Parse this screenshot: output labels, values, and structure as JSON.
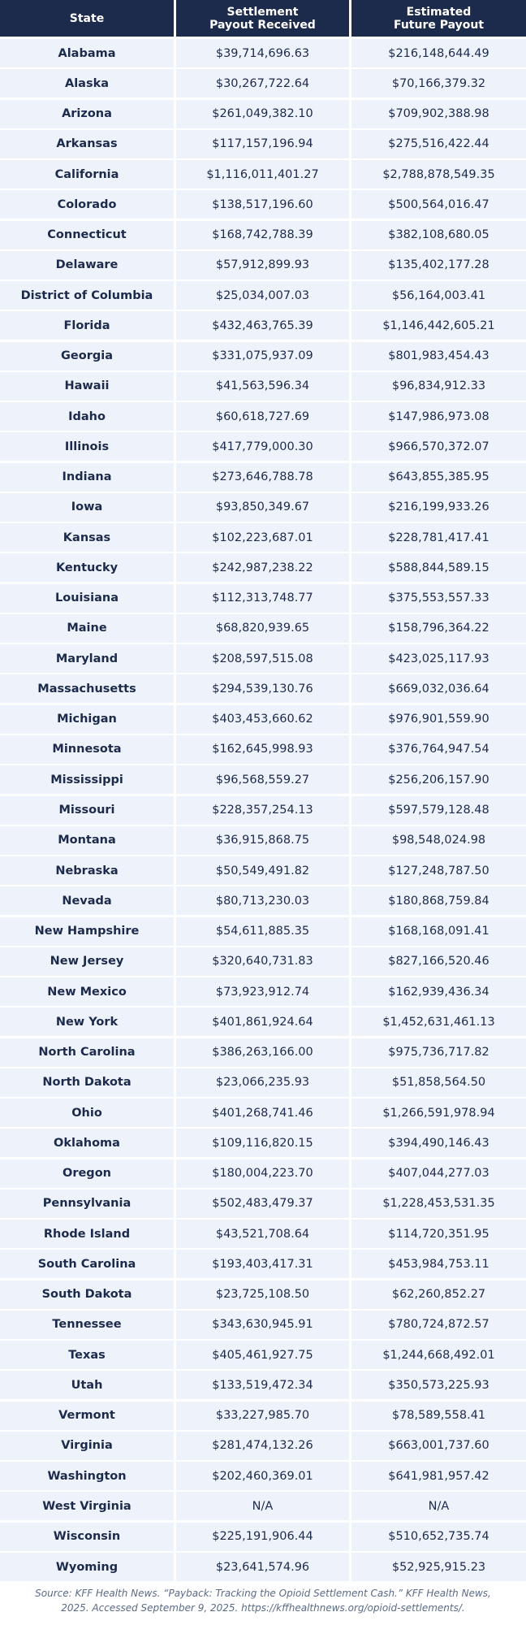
{
  "table": {
    "header": [
      "State",
      "Settlement Payout Received",
      "Estimated Future Payout"
    ],
    "rows": [
      [
        "Alabama",
        "$39,714,696.63",
        "$216,148,644.49"
      ],
      [
        "Alaska",
        "$30,267,722.64",
        "$70,166,379.32"
      ],
      [
        "Arizona",
        "$261,049,382.10",
        "$709,902,388.98"
      ],
      [
        "Arkansas",
        "$117,157,196.94",
        "$275,516,422.44"
      ],
      [
        "California",
        "$1,116,011,401.27",
        "$2,788,878,549.35"
      ],
      [
        "Colorado",
        "$138,517,196.60",
        "$500,564,016.47"
      ],
      [
        "Connecticut",
        "$168,742,788.39",
        "$382,108,680.05"
      ],
      [
        "Delaware",
        "$57,912,899.93",
        "$135,402,177.28"
      ],
      [
        "District of Columbia",
        "$25,034,007.03",
        "$56,164,003.41"
      ],
      [
        "Florida",
        "$432,463,765.39",
        "$1,146,442,605.21"
      ],
      [
        "Georgia",
        "$331,075,937.09",
        "$801,983,454.43"
      ],
      [
        "Hawaii",
        "$41,563,596.34",
        "$96,834,912.33"
      ],
      [
        "Idaho",
        "$60,618,727.69",
        "$147,986,973.08"
      ],
      [
        "Illinois",
        "$417,779,000.30",
        "$966,570,372.07"
      ],
      [
        "Indiana",
        "$273,646,788.78",
        "$643,855,385.95"
      ],
      [
        "Iowa",
        "$93,850,349.67",
        "$216,199,933.26"
      ],
      [
        "Kansas",
        "$102,223,687.01",
        "$228,781,417.41"
      ],
      [
        "Kentucky",
        "$242,987,238.22",
        "$588,844,589.15"
      ],
      [
        "Louisiana",
        "$112,313,748.77",
        "$375,553,557.33"
      ],
      [
        "Maine",
        "$68,820,939.65",
        "$158,796,364.22"
      ],
      [
        "Maryland",
        "$208,597,515.08",
        "$423,025,117.93"
      ],
      [
        "Massachusetts",
        "$294,539,130.76",
        "$669,032,036.64"
      ],
      [
        "Michigan",
        "$403,453,660.62",
        "$976,901,559.90"
      ],
      [
        "Minnesota",
        "$162,645,998.93",
        "$376,764,947.54"
      ],
      [
        "Mississippi",
        "$96,568,559.27",
        "$256,206,157.90"
      ],
      [
        "Missouri",
        "$228,357,254.13",
        "$597,579,128.48"
      ],
      [
        "Montana",
        "$36,915,868.75",
        "$98,548,024.98"
      ],
      [
        "Nebraska",
        "$50,549,491.82",
        "$127,248,787.50"
      ],
      [
        "Nevada",
        "$80,713,230.03",
        "$180,868,759.84"
      ],
      [
        "New Hampshire",
        "$54,611,885.35",
        "$168,168,091.41"
      ],
      [
        "New Jersey",
        "$320,640,731.83",
        "$827,166,520.46"
      ],
      [
        "New Mexico",
        "$73,923,912.74",
        "$162,939,436.34"
      ],
      [
        "New York",
        "$401,861,924.64",
        "$1,452,631,461.13"
      ],
      [
        "North Carolina",
        "$386,263,166.00",
        "$975,736,717.82"
      ],
      [
        "North Dakota",
        "$23,066,235.93",
        "$51,858,564.50"
      ],
      [
        "Ohio",
        "$401,268,741.46",
        "$1,266,591,978.94"
      ],
      [
        "Oklahoma",
        "$109,116,820.15",
        "$394,490,146.43"
      ],
      [
        "Oregon",
        "$180,004,223.70",
        "$407,044,277.03"
      ],
      [
        "Pennsylvania",
        "$502,483,479.37",
        "$1,228,453,531.35"
      ],
      [
        "Rhode Island",
        "$43,521,708.64",
        "$114,720,351.95"
      ],
      [
        "South Carolina",
        "$193,403,417.31",
        "$453,984,753.11"
      ],
      [
        "South Dakota",
        "$23,725,108.50",
        "$62,260,852.27"
      ],
      [
        "Tennessee",
        "$343,630,945.91",
        "$780,724,872.57"
      ],
      [
        "Texas",
        "$405,461,927.75",
        "$1,244,668,492.01"
      ],
      [
        "Utah",
        "$133,519,472.34",
        "$350,573,225.93"
      ],
      [
        "Vermont",
        "$33,227,985.70",
        "$78,589,558.41"
      ],
      [
        "Virginia",
        "$281,474,132.26",
        "$663,001,737.60"
      ],
      [
        "Washington",
        "$202,460,369.01",
        "$641,981,957.42"
      ],
      [
        "West Virginia",
        "N/A",
        "N/A"
      ],
      [
        "Wisconsin",
        "$225,191,906.44",
        "$510,652,735.74"
      ],
      [
        "Wyoming",
        "$23,641,574.96",
        "$52,925,915.23"
      ]
    ]
  },
  "source": "Source: KFF Health News. “Payback: Tracking the Opioid Settlement Cash.” KFF Health News, 2025. Accessed September 9, 2025. https://kffhealthnews.org/opioid-settlements/."
}
